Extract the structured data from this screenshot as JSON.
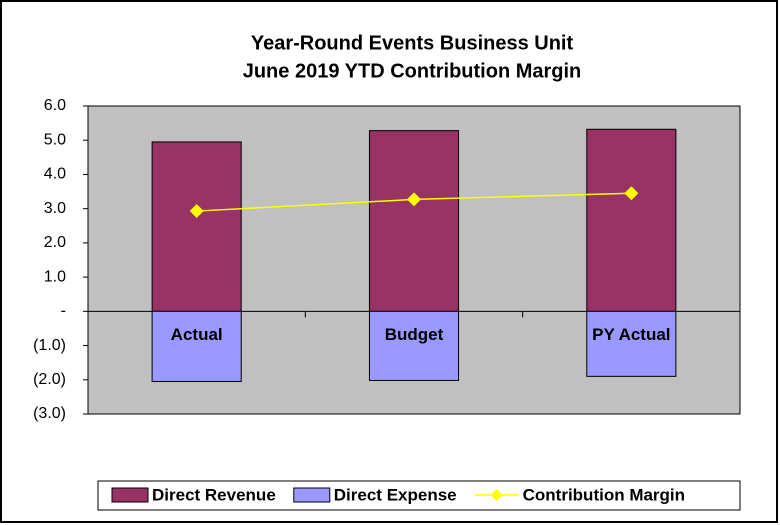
{
  "chart_data": {
    "type": "bar",
    "title": "Year-Round Events Business Unit",
    "subtitle": "June 2019 YTD Contribution Margin",
    "categories": [
      "Actual",
      "Budget",
      "PY Actual"
    ],
    "series": [
      {
        "name": "Direct Revenue",
        "type": "bar",
        "color": "#993366",
        "values": [
          4.95,
          5.28,
          5.32
        ]
      },
      {
        "name": "Direct Expense",
        "type": "bar",
        "color": "#9999ff",
        "values": [
          -2.05,
          -2.02,
          -1.9
        ]
      },
      {
        "name": "Contribution Margin",
        "type": "line",
        "color": "#ffff00",
        "values": [
          2.93,
          3.27,
          3.45
        ]
      }
    ],
    "ylim": [
      -3,
      6
    ],
    "yticks": [
      {
        "value": 6,
        "label": "6.0"
      },
      {
        "value": 5,
        "label": "5.0"
      },
      {
        "value": 4,
        "label": "4.0"
      },
      {
        "value": 3,
        "label": "3.0"
      },
      {
        "value": 2,
        "label": "2.0"
      },
      {
        "value": 1,
        "label": "1.0"
      },
      {
        "value": 0,
        "label": "-"
      },
      {
        "value": -1,
        "label": "(1.0)"
      },
      {
        "value": -2,
        "label": "(2.0)"
      },
      {
        "value": -3,
        "label": "(3.0)"
      }
    ],
    "legend": "bottom"
  }
}
